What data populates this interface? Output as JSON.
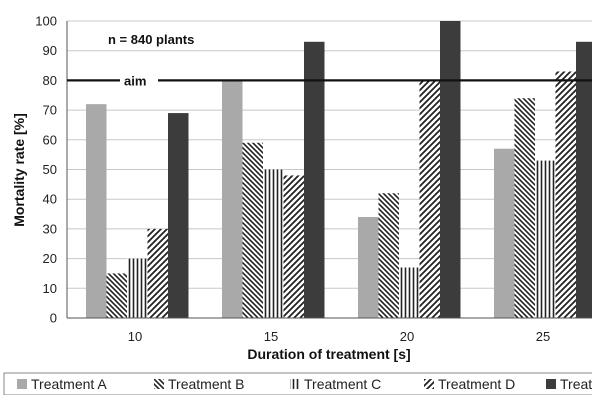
{
  "chart_data": {
    "type": "bar",
    "title": "",
    "xlabel": "Duration of treatment [s]",
    "ylabel": "Mortality rate [%]",
    "ylim": [
      0,
      100
    ],
    "yticks": [
      0,
      10,
      20,
      30,
      40,
      50,
      60,
      70,
      80,
      90,
      100
    ],
    "categories": [
      "10",
      "15",
      "20",
      "25"
    ],
    "series": [
      {
        "name": "Treatment A",
        "pattern": "solid-light",
        "color": "#a9a9a9",
        "values": [
          72,
          80,
          34,
          57
        ]
      },
      {
        "name": "Treatment B",
        "pattern": "diagonal-back",
        "color": "#333333",
        "values": [
          15,
          59,
          42,
          74
        ]
      },
      {
        "name": "Treatment C",
        "pattern": "vertical-lines",
        "color": "#333333",
        "values": [
          20,
          50,
          17,
          53
        ]
      },
      {
        "name": "Treatment D",
        "pattern": "diagonal-forward",
        "color": "#333333",
        "values": [
          30,
          48,
          80,
          83
        ]
      },
      {
        "name": "Treatment E",
        "pattern": "solid-dark",
        "color": "#3c3c3c",
        "values": [
          69,
          93,
          100,
          93
        ]
      }
    ],
    "reference_line": {
      "value": 80,
      "label": "aim"
    },
    "annotation": "n = 840 plants",
    "grid": true,
    "legend_position": "bottom"
  }
}
